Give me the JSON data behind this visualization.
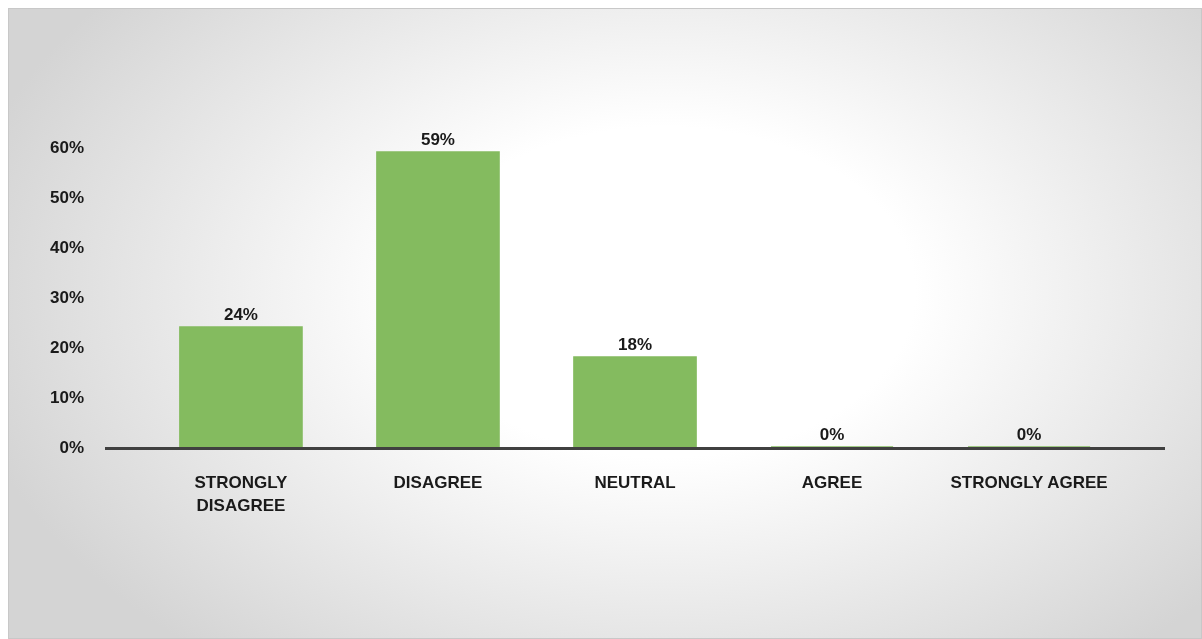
{
  "chart_data": {
    "type": "bar",
    "categories": [
      "STRONGLY DISAGREE",
      "DISAGREE",
      "NEUTRAL",
      "AGREE",
      "STRONGLY AGREE"
    ],
    "values": [
      24,
      59,
      18,
      0,
      0
    ],
    "color": "#84bb5f",
    "value_labels": [
      "24%",
      "59%",
      "18%",
      "0%",
      "0%"
    ],
    "ylim": [
      0,
      60
    ],
    "yticks": [
      {
        "value": 0,
        "label": "0%"
      },
      {
        "value": 10,
        "label": "10%"
      },
      {
        "value": 20,
        "label": "20%"
      },
      {
        "value": 30,
        "label": "30%"
      },
      {
        "value": 40,
        "label": "40%"
      },
      {
        "value": 50,
        "label": "50%"
      },
      {
        "value": 60,
        "label": "60%"
      }
    ],
    "legend": false
  }
}
